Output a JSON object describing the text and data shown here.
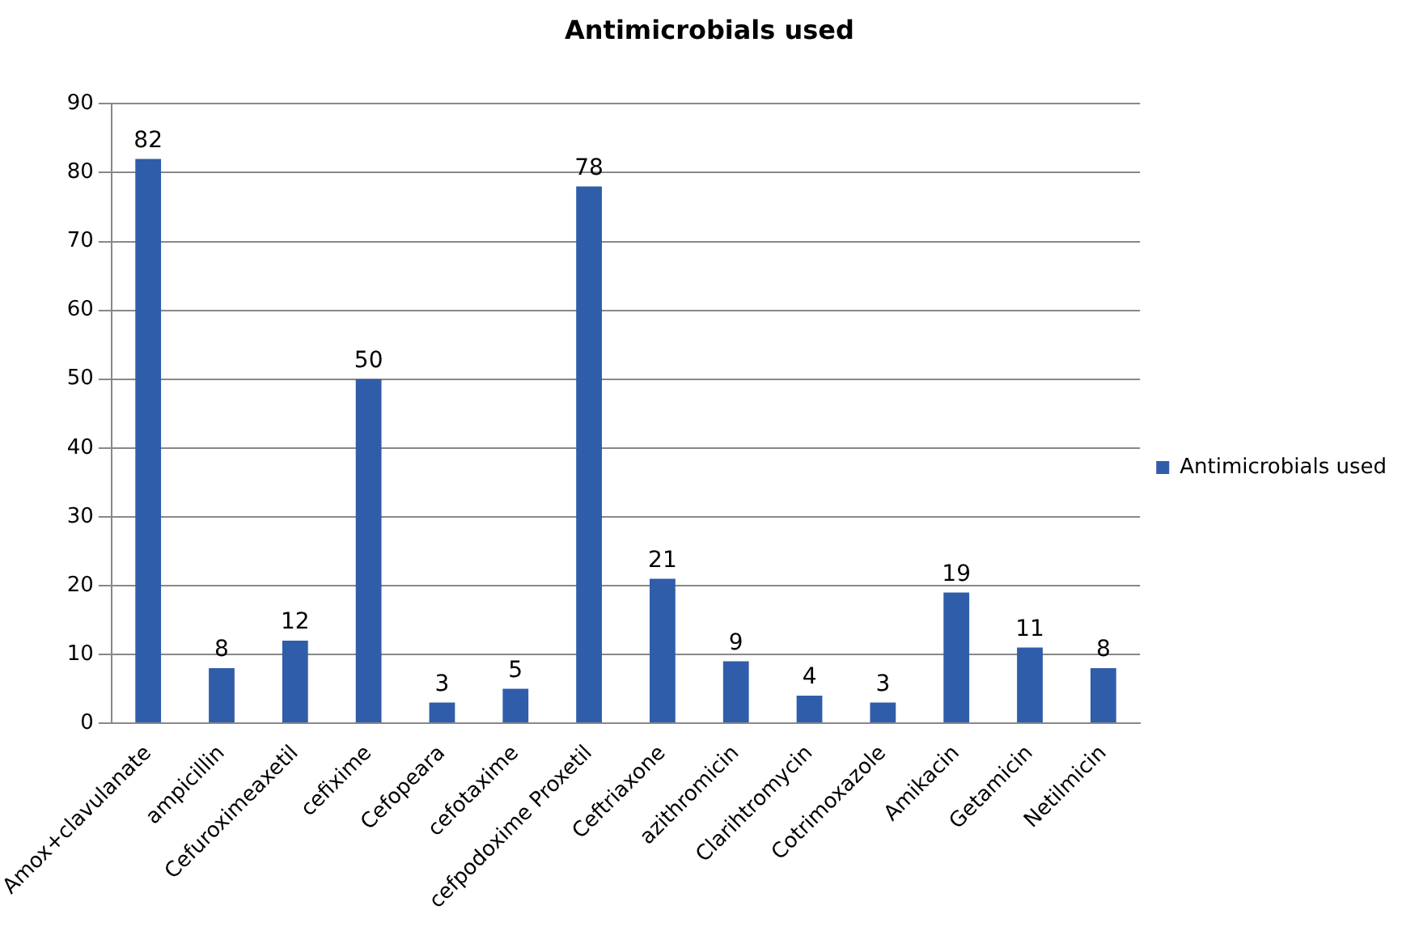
{
  "chart_data": {
    "type": "bar",
    "title": "Antimicrobials used",
    "categories": [
      "Amox+clavulanate",
      "ampicillin",
      "Cefuroximeaxetil",
      "cefixime",
      "Cefopeara",
      "cefotaxime",
      "cefpodoxime Proxetil",
      "Ceftriaxone",
      "azithromicin",
      "Clarihtromycin",
      "Cotrimoxazole",
      "Amikacin",
      "Getamicin",
      "Netilmicin"
    ],
    "series": [
      {
        "name": "Antimicrobials used",
        "color": "#2f5daa",
        "values": [
          82,
          8,
          12,
          50,
          3,
          5,
          78,
          21,
          9,
          4,
          3,
          19,
          11,
          8
        ]
      }
    ],
    "ylim": [
      0,
      90
    ],
    "yticks": [
      0,
      10,
      20,
      30,
      40,
      50,
      60,
      70,
      80,
      90
    ],
    "grid": "y",
    "legend": "right",
    "data_labels": true
  }
}
